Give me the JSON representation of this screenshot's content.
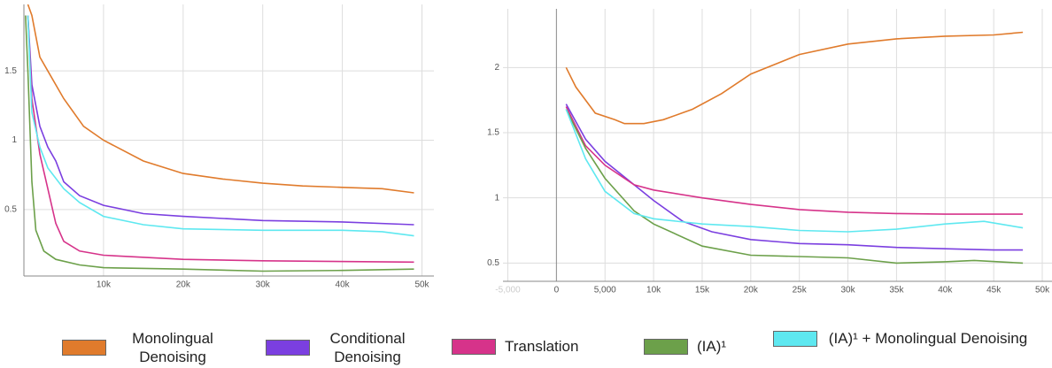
{
  "chart_data": [
    {
      "type": "line",
      "xlim": [
        0,
        51500
      ],
      "ylim": [
        0.02,
        1.98
      ],
      "xticks": [
        {
          "value": 10000,
          "label": "10k"
        },
        {
          "value": 20000,
          "label": "20k"
        },
        {
          "value": 30000,
          "label": "30k"
        },
        {
          "value": 40000,
          "label": "40k"
        },
        {
          "value": 50000,
          "label": "50k"
        }
      ],
      "yticks": [
        0.5,
        1,
        1.5
      ],
      "grid": true,
      "series": [
        {
          "name": "Monolingual Denoising",
          "color": "#e07b2c",
          "x": [
            500,
            1000,
            2000,
            3000,
            5000,
            7500,
            10000,
            15000,
            20000,
            25000,
            30000,
            35000,
            40000,
            45000,
            49000
          ],
          "values": [
            1.98,
            1.9,
            1.6,
            1.5,
            1.3,
            1.1,
            1.0,
            0.85,
            0.76,
            0.72,
            0.69,
            0.67,
            0.66,
            0.65,
            0.62
          ]
        },
        {
          "name": "Conditional Denoising",
          "color": "#7b3fe0",
          "x": [
            500,
            1000,
            2000,
            3000,
            4000,
            5000,
            7000,
            10000,
            15000,
            20000,
            30000,
            40000,
            49000
          ],
          "values": [
            1.9,
            1.4,
            1.1,
            0.95,
            0.85,
            0.7,
            0.6,
            0.53,
            0.47,
            0.45,
            0.42,
            0.41,
            0.39
          ]
        },
        {
          "name": "Translation",
          "color": "#d6338a",
          "x": [
            500,
            1000,
            2000,
            3000,
            4000,
            5000,
            7000,
            10000,
            20000,
            30000,
            49000
          ],
          "values": [
            1.9,
            1.3,
            0.9,
            0.65,
            0.4,
            0.27,
            0.2,
            0.17,
            0.14,
            0.13,
            0.12
          ]
        },
        {
          "name": "(IA)¹",
          "color": "#6ca04a",
          "x": [
            200,
            500,
            1000,
            1500,
            2500,
            4000,
            7000,
            10000,
            20000,
            30000,
            40000,
            49000
          ],
          "values": [
            1.9,
            1.5,
            0.7,
            0.35,
            0.2,
            0.14,
            0.1,
            0.08,
            0.07,
            0.055,
            0.06,
            0.07
          ]
        },
        {
          "name": "(IA)¹ + Monolingual Denoising",
          "color": "#5ee8f0",
          "x": [
            500,
            1000,
            2000,
            3000,
            5000,
            7000,
            10000,
            15000,
            20000,
            30000,
            40000,
            45000,
            49000
          ],
          "values": [
            1.9,
            1.2,
            0.95,
            0.8,
            0.65,
            0.55,
            0.45,
            0.39,
            0.36,
            0.35,
            0.35,
            0.34,
            0.31
          ]
        }
      ]
    },
    {
      "type": "line",
      "xlim": [
        -5500,
        51000
      ],
      "ylim": [
        0.36,
        2.45
      ],
      "xticks": [
        {
          "value": -5000,
          "label": "-5,000"
        },
        0,
        {
          "value": 5000,
          "label": "5,000"
        },
        {
          "value": 10000,
          "label": "10k"
        },
        {
          "value": 15000,
          "label": "15k"
        },
        {
          "value": 20000,
          "label": "20k"
        },
        {
          "value": 25000,
          "label": "25k"
        },
        {
          "value": 30000,
          "label": "30k"
        },
        {
          "value": 35000,
          "label": "35k"
        },
        {
          "value": 40000,
          "label": "40k"
        },
        {
          "value": 45000,
          "label": "45k"
        },
        {
          "value": 50000,
          "label": "50k"
        }
      ],
      "yticks": [
        0.5,
        1,
        1.5,
        2
      ],
      "grid": true,
      "series": [
        {
          "name": "Monolingual Denoising",
          "color": "#e07b2c",
          "x": [
            1000,
            2000,
            4000,
            6000,
            7000,
            9000,
            11000,
            14000,
            17000,
            20000,
            25000,
            30000,
            35000,
            40000,
            45000,
            48000
          ],
          "values": [
            2.0,
            1.85,
            1.65,
            1.6,
            1.57,
            1.57,
            1.6,
            1.68,
            1.8,
            1.95,
            2.1,
            2.18,
            2.22,
            2.24,
            2.25,
            2.27
          ]
        },
        {
          "name": "Conditional Denoising",
          "color": "#7b3fe0",
          "x": [
            1000,
            3000,
            5000,
            8000,
            10000,
            13000,
            16000,
            20000,
            25000,
            30000,
            35000,
            40000,
            45000,
            48000
          ],
          "values": [
            1.72,
            1.45,
            1.28,
            1.1,
            0.98,
            0.82,
            0.74,
            0.68,
            0.65,
            0.64,
            0.62,
            0.61,
            0.6,
            0.6
          ]
        },
        {
          "name": "Translation",
          "color": "#d6338a",
          "x": [
            1000,
            3000,
            5000,
            8000,
            10000,
            15000,
            20000,
            25000,
            30000,
            35000,
            40000,
            48000
          ],
          "values": [
            1.7,
            1.4,
            1.25,
            1.1,
            1.06,
            1.0,
            0.95,
            0.91,
            0.89,
            0.88,
            0.875,
            0.875
          ]
        },
        {
          "name": "(IA)¹",
          "color": "#6ca04a",
          "x": [
            1000,
            3000,
            5000,
            8000,
            10000,
            15000,
            20000,
            25000,
            30000,
            35000,
            40000,
            43000,
            48000
          ],
          "values": [
            1.68,
            1.38,
            1.15,
            0.9,
            0.8,
            0.63,
            0.56,
            0.55,
            0.54,
            0.5,
            0.51,
            0.52,
            0.5
          ]
        },
        {
          "name": "(IA)¹ + Monolingual Denoising",
          "color": "#5ee8f0",
          "x": [
            1000,
            3000,
            5000,
            8000,
            10000,
            15000,
            20000,
            25000,
            30000,
            35000,
            40000,
            44000,
            48000
          ],
          "values": [
            1.68,
            1.3,
            1.05,
            0.88,
            0.84,
            0.8,
            0.78,
            0.75,
            0.74,
            0.76,
            0.8,
            0.82,
            0.77
          ]
        }
      ]
    }
  ]
}
